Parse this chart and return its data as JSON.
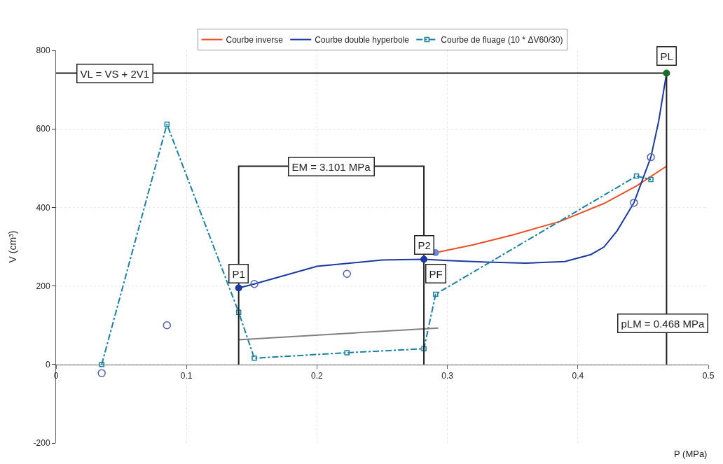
{
  "chart_data": {
    "type": "line",
    "xlabel": "P (MPa)",
    "ylabel": "V (cm³)",
    "xlim": [
      0,
      0.5
    ],
    "xticks": [
      0,
      0.1,
      0.2,
      0.3,
      0.4,
      0.5
    ],
    "ylim": [
      -200,
      800
    ],
    "yticks": [
      -200,
      0,
      200,
      400,
      600,
      800
    ],
    "grid": true,
    "legend": "top",
    "series": [
      {
        "name": "Courbe inverse",
        "color": "#e8502a",
        "line_style": "solid",
        "marker": "none",
        "x": [
          0.291,
          0.32,
          0.35,
          0.386,
          0.42,
          0.445,
          0.468
        ],
        "values": [
          285,
          305,
          330,
          364,
          410,
          455,
          505
        ]
      },
      {
        "name": "Courbe double hyperbole",
        "color": "#1a3aa0",
        "line_style": "solid",
        "marker": "none",
        "x": [
          0.14,
          0.152,
          0.2,
          0.25,
          0.282,
          0.3,
          0.33,
          0.36,
          0.39,
          0.41,
          0.42,
          0.43,
          0.443,
          0.456,
          0.462,
          0.468
        ],
        "values": [
          195,
          205,
          250,
          266,
          268,
          265,
          261,
          258,
          262,
          280,
          299,
          340,
          412,
          528,
          620,
          742
        ]
      },
      {
        "name": "Courbe de fluage (10 * ΔV60/30)",
        "color": "#1a7fa0",
        "line_style": "dashed",
        "marker": "square",
        "x": [
          0.035,
          0.085,
          0.14,
          0.152,
          0.223,
          0.282,
          0.291,
          0.445,
          0.456
        ],
        "values": [
          0,
          612,
          133,
          16,
          30,
          40,
          179,
          480,
          471
        ]
      },
      {
        "color": "#5060b0",
        "type": "scatter",
        "marker": "circle",
        "x": [
          0.035,
          0.085,
          0.152,
          0.223,
          0.443,
          0.456
        ],
        "values": [
          -22,
          100,
          205,
          231,
          412,
          528
        ]
      },
      {
        "color": "#808080",
        "line_style": "solid",
        "marker": "none",
        "x": [
          0.14,
          0.293
        ],
        "values": [
          63,
          93
        ]
      },
      {
        "color": "#202020",
        "line_style": "solid",
        "marker": "none",
        "x": [
          0,
          0.468
        ],
        "values": [
          742,
          742
        ]
      },
      {
        "color": "#202020",
        "line_style": "solid",
        "marker": "none",
        "x": [
          0.468,
          0.468
        ],
        "values": [
          0,
          742
        ]
      },
      {
        "color": "#202020",
        "line_style": "solid",
        "marker": "none",
        "x": [
          0.14,
          0.14,
          0.282,
          0.282
        ],
        "values": [
          0,
          505,
          505,
          0
        ]
      },
      {
        "type": "scatter",
        "marker": "circle",
        "x": [
          0.14,
          0.282,
          0.291,
          0.468
        ],
        "values": [
          195,
          268,
          285,
          742
        ],
        "colors": [
          "#1a3aa0",
          "#1a3aa0",
          "#6a8ad8",
          "#1a6a2a"
        ]
      }
    ],
    "annotations": [
      {
        "text": "VL = VS + 2V1",
        "x": 0.045,
        "y": 742
      },
      {
        "text": "PL",
        "x": 0.468,
        "y": 785
      },
      {
        "text": "EM = 3.101 MPa",
        "x": 0.211,
        "y": 505
      },
      {
        "text": "P1",
        "x": 0.14,
        "y": 232
      },
      {
        "text": "P2",
        "x": 0.282,
        "y": 305
      },
      {
        "text": "PF",
        "x": 0.291,
        "y": 232
      },
      "pLM = 0.468 MPa"
    ]
  }
}
